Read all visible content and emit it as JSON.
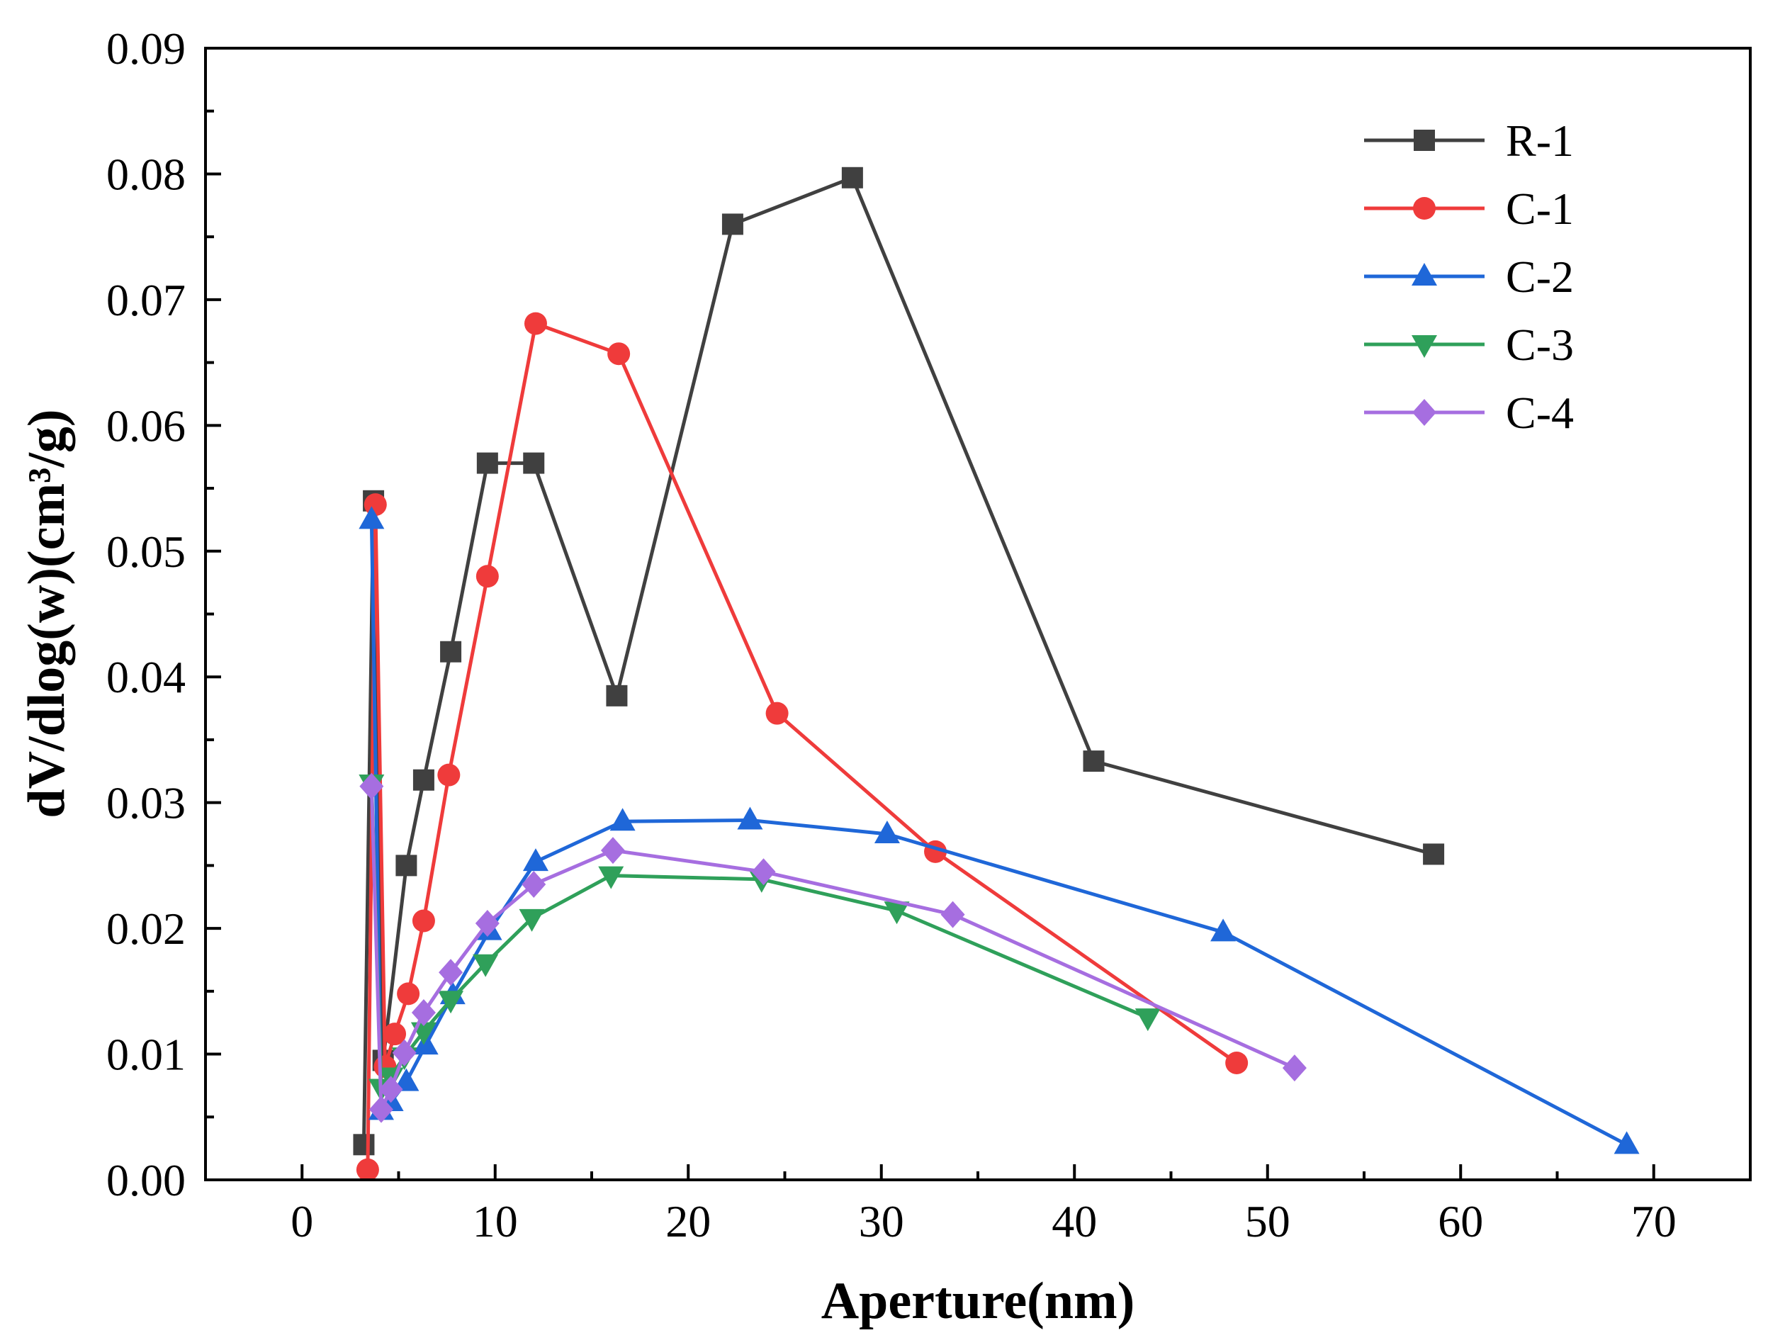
{
  "chart_data": {
    "type": "line",
    "title": "",
    "xlabel": "Aperture(nm)",
    "ylabel": "dV/dlog(w)(cm³/g)",
    "xlim": [
      -5,
      75
    ],
    "ylim": [
      0,
      0.09
    ],
    "xticks": [
      0,
      10,
      20,
      30,
      40,
      50,
      60,
      70
    ],
    "xtick_labels": [
      "0",
      "10",
      "20",
      "30",
      "40",
      "50",
      "60",
      "70"
    ],
    "yticks": [
      0,
      0.01,
      0.02,
      0.03,
      0.04,
      0.05,
      0.06,
      0.07,
      0.08,
      0.09
    ],
    "ytick_labels": [
      "0.00",
      "0.01",
      "0.02",
      "0.03",
      "0.04",
      "0.05",
      "0.06",
      "0.07",
      "0.08",
      "0.09"
    ],
    "grid": false,
    "legend_position": "top-right",
    "series": [
      {
        "name": "R-1",
        "color": "#404040",
        "marker": "square",
        "x": [
          3.2,
          3.7,
          4.2,
          5.4,
          6.3,
          7.7,
          9.6,
          12.0,
          16.3,
          22.3,
          28.5,
          41.0,
          58.6
        ],
        "y": [
          0.0028,
          0.054,
          0.0095,
          0.025,
          0.0318,
          0.042,
          0.057,
          0.057,
          0.0385,
          0.076,
          0.0797,
          0.0333,
          0.0259
        ]
      },
      {
        "name": "C-1",
        "color": "#ef3b3b",
        "marker": "circle",
        "x": [
          3.4,
          3.8,
          4.3,
          4.8,
          5.5,
          6.3,
          7.6,
          9.6,
          12.1,
          16.4,
          24.6,
          32.8,
          48.4
        ],
        "y": [
          0.0008,
          0.0537,
          0.009,
          0.0116,
          0.0148,
          0.0206,
          0.0322,
          0.048,
          0.0681,
          0.0657,
          0.0371,
          0.0261,
          0.0093
        ]
      },
      {
        "name": "C-2",
        "color": "#1f67d8",
        "marker": "triangle-up",
        "x": [
          3.6,
          4.1,
          4.6,
          5.4,
          6.4,
          7.8,
          9.7,
          12.1,
          16.6,
          23.2,
          30.3,
          47.7,
          68.6
        ],
        "y": [
          0.0525,
          0.0055,
          0.0062,
          0.0078,
          0.0107,
          0.0147,
          0.0198,
          0.0253,
          0.0285,
          0.0286,
          0.0275,
          0.0197,
          0.0028
        ]
      },
      {
        "name": "C-3",
        "color": "#2fa05a",
        "marker": "triangle-down",
        "x": [
          3.6,
          4.1,
          4.6,
          5.3,
          6.3,
          7.7,
          9.5,
          11.9,
          16.0,
          23.8,
          30.8,
          43.8
        ],
        "y": [
          0.0315,
          0.0073,
          0.0082,
          0.0098,
          0.0118,
          0.0143,
          0.0172,
          0.0208,
          0.0242,
          0.0239,
          0.0214,
          0.0129
        ]
      },
      {
        "name": "C-4",
        "color": "#a66ee0",
        "marker": "diamond",
        "x": [
          3.6,
          4.1,
          4.6,
          5.3,
          6.3,
          7.7,
          9.6,
          12.0,
          16.1,
          23.9,
          33.7,
          51.4
        ],
        "y": [
          0.0313,
          0.0056,
          0.0072,
          0.0101,
          0.0133,
          0.0165,
          0.0204,
          0.0235,
          0.0262,
          0.0245,
          0.0211,
          0.0089
        ]
      }
    ]
  }
}
